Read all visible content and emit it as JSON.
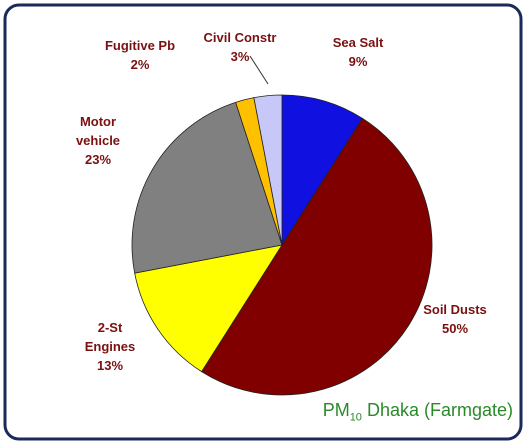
{
  "chart_data": {
    "type": "pie",
    "title_parts": [
      "PM",
      "10",
      " Dhaka (Farmgate)"
    ],
    "categories": [
      "Sea Salt",
      "Soil Dusts",
      "2-St Engines",
      "Motor vehicle",
      "Fugitive Pb",
      "Civil Constr"
    ],
    "values": [
      9,
      50,
      13,
      23,
      2,
      3
    ],
    "value_labels": [
      "9%",
      "50%",
      "13%",
      "23%",
      "2%",
      "3%"
    ],
    "colors": [
      "#1010e0",
      "#800000",
      "#ffff00",
      "#808080",
      "#ffc000",
      "#c8c8f8"
    ]
  }
}
